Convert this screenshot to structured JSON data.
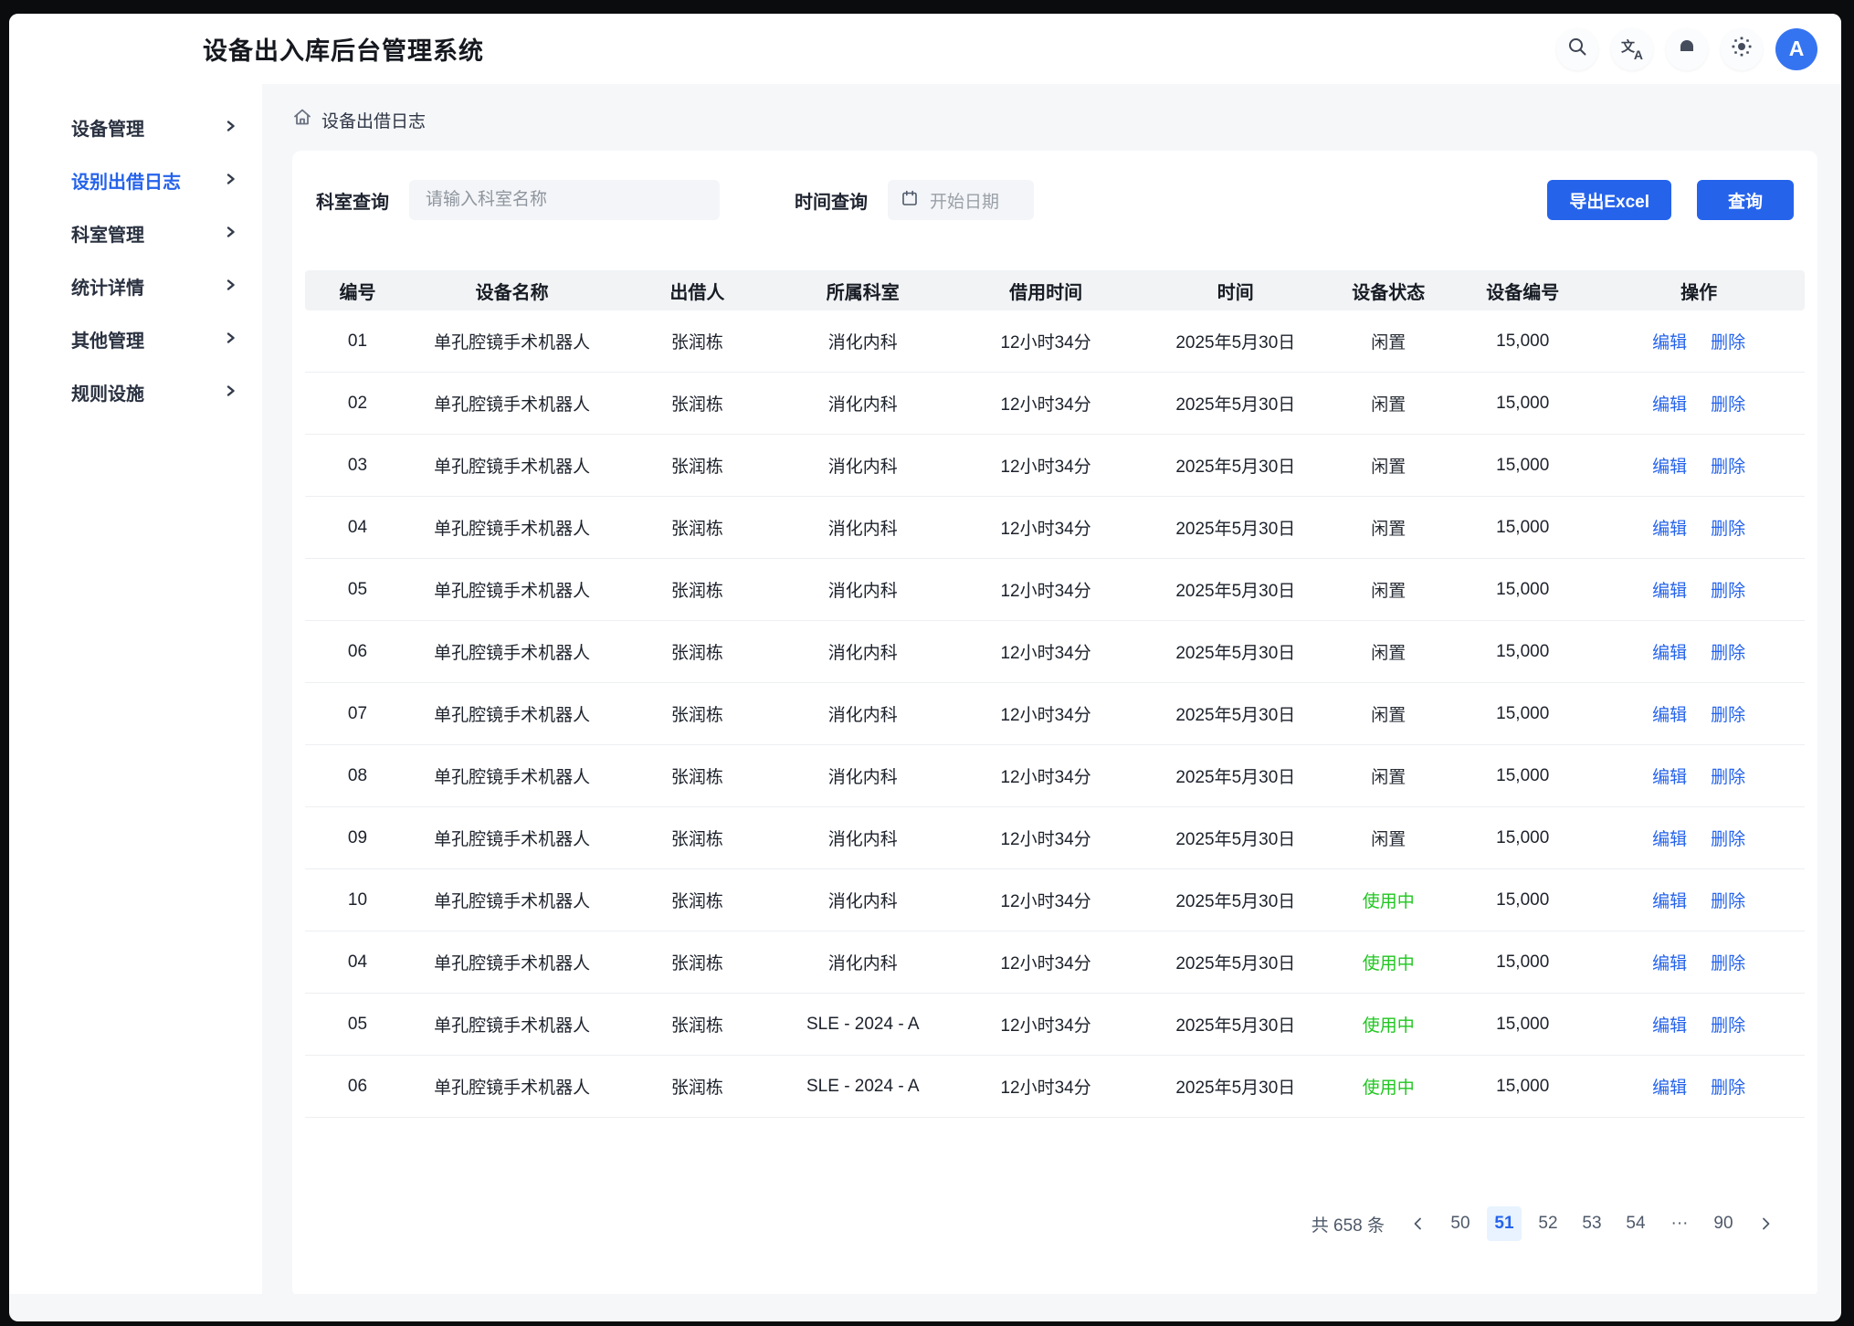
{
  "topbar": {
    "title": "设备出入库后台管理系统",
    "icons": [
      "search-icon",
      "translate-icon",
      "bell-icon",
      "theme-icon"
    ],
    "avatar_text": "A"
  },
  "sidebar": {
    "items": [
      {
        "label": "设备管理",
        "active": false
      },
      {
        "label": "设别出借日志",
        "active": true
      },
      {
        "label": "科室管理",
        "active": false
      },
      {
        "label": "统计详情",
        "active": false
      },
      {
        "label": "其他管理",
        "active": false
      },
      {
        "label": "规则设施",
        "active": false
      }
    ]
  },
  "breadcrumb": {
    "label": "设备出借日志"
  },
  "filters": {
    "dept_label": "科室查询",
    "dept_placeholder": "请输入科室名称",
    "time_label": "时间查询",
    "date_placeholder": "开始日期",
    "export_label": "导出Excel",
    "search_label": "查询"
  },
  "table": {
    "columns": [
      "编号",
      "设备名称",
      "出借人",
      "所属科室",
      "借用时间",
      "时间",
      "设备状态",
      "设备编号",
      "操作"
    ],
    "edit_label": "编辑",
    "delete_label": "删除",
    "rows": [
      {
        "no": "01",
        "name": "单孔腔镜手术机器人",
        "lender": "张润栋",
        "dept": "消化内科",
        "duration": "12小时34分",
        "date": "2025年5月30日",
        "status": "闲置",
        "status_type": "idle",
        "code": "15,000"
      },
      {
        "no": "02",
        "name": "单孔腔镜手术机器人",
        "lender": "张润栋",
        "dept": "消化内科",
        "duration": "12小时34分",
        "date": "2025年5月30日",
        "status": "闲置",
        "status_type": "idle",
        "code": "15,000"
      },
      {
        "no": "03",
        "name": "单孔腔镜手术机器人",
        "lender": "张润栋",
        "dept": "消化内科",
        "duration": "12小时34分",
        "date": "2025年5月30日",
        "status": "闲置",
        "status_type": "idle",
        "code": "15,000"
      },
      {
        "no": "04",
        "name": "单孔腔镜手术机器人",
        "lender": "张润栋",
        "dept": "消化内科",
        "duration": "12小时34分",
        "date": "2025年5月30日",
        "status": "闲置",
        "status_type": "idle",
        "code": "15,000"
      },
      {
        "no": "05",
        "name": "单孔腔镜手术机器人",
        "lender": "张润栋",
        "dept": "消化内科",
        "duration": "12小时34分",
        "date": "2025年5月30日",
        "status": "闲置",
        "status_type": "idle",
        "code": "15,000"
      },
      {
        "no": "06",
        "name": "单孔腔镜手术机器人",
        "lender": "张润栋",
        "dept": "消化内科",
        "duration": "12小时34分",
        "date": "2025年5月30日",
        "status": "闲置",
        "status_type": "idle",
        "code": "15,000"
      },
      {
        "no": "07",
        "name": "单孔腔镜手术机器人",
        "lender": "张润栋",
        "dept": "消化内科",
        "duration": "12小时34分",
        "date": "2025年5月30日",
        "status": "闲置",
        "status_type": "idle",
        "code": "15,000"
      },
      {
        "no": "08",
        "name": "单孔腔镜手术机器人",
        "lender": "张润栋",
        "dept": "消化内科",
        "duration": "12小时34分",
        "date": "2025年5月30日",
        "status": "闲置",
        "status_type": "idle",
        "code": "15,000"
      },
      {
        "no": "09",
        "name": "单孔腔镜手术机器人",
        "lender": "张润栋",
        "dept": "消化内科",
        "duration": "12小时34分",
        "date": "2025年5月30日",
        "status": "闲置",
        "status_type": "idle",
        "code": "15,000"
      },
      {
        "no": "10",
        "name": "单孔腔镜手术机器人",
        "lender": "张润栋",
        "dept": "消化内科",
        "duration": "12小时34分",
        "date": "2025年5月30日",
        "status": "使用中",
        "status_type": "inuse",
        "code": "15,000"
      },
      {
        "no": "04",
        "name": "单孔腔镜手术机器人",
        "lender": "张润栋",
        "dept": "消化内科",
        "duration": "12小时34分",
        "date": "2025年5月30日",
        "status": "使用中",
        "status_type": "inuse",
        "code": "15,000"
      },
      {
        "no": "05",
        "name": "单孔腔镜手术机器人",
        "lender": "张润栋",
        "dept": "SLE - 2024 - A",
        "duration": "12小时34分",
        "date": "2025年5月30日",
        "status": "使用中",
        "status_type": "inuse",
        "code": "15,000"
      },
      {
        "no": "06",
        "name": "单孔腔镜手术机器人",
        "lender": "张润栋",
        "dept": "SLE - 2024 - A",
        "duration": "12小时34分",
        "date": "2025年5月30日",
        "status": "使用中",
        "status_type": "inuse",
        "code": "15,000"
      }
    ]
  },
  "pagination": {
    "total_text": "共 658 条",
    "pages": [
      "50",
      "51",
      "52",
      "53",
      "54",
      "···",
      "90"
    ],
    "active_page": "51"
  },
  "colors": {
    "accent_blue": "#2563eb",
    "status_green": "#1fc71f",
    "status_dark": "#262b33",
    "page_bg": "#f5f7f9",
    "active_page_bg": "#e8f3ff"
  }
}
